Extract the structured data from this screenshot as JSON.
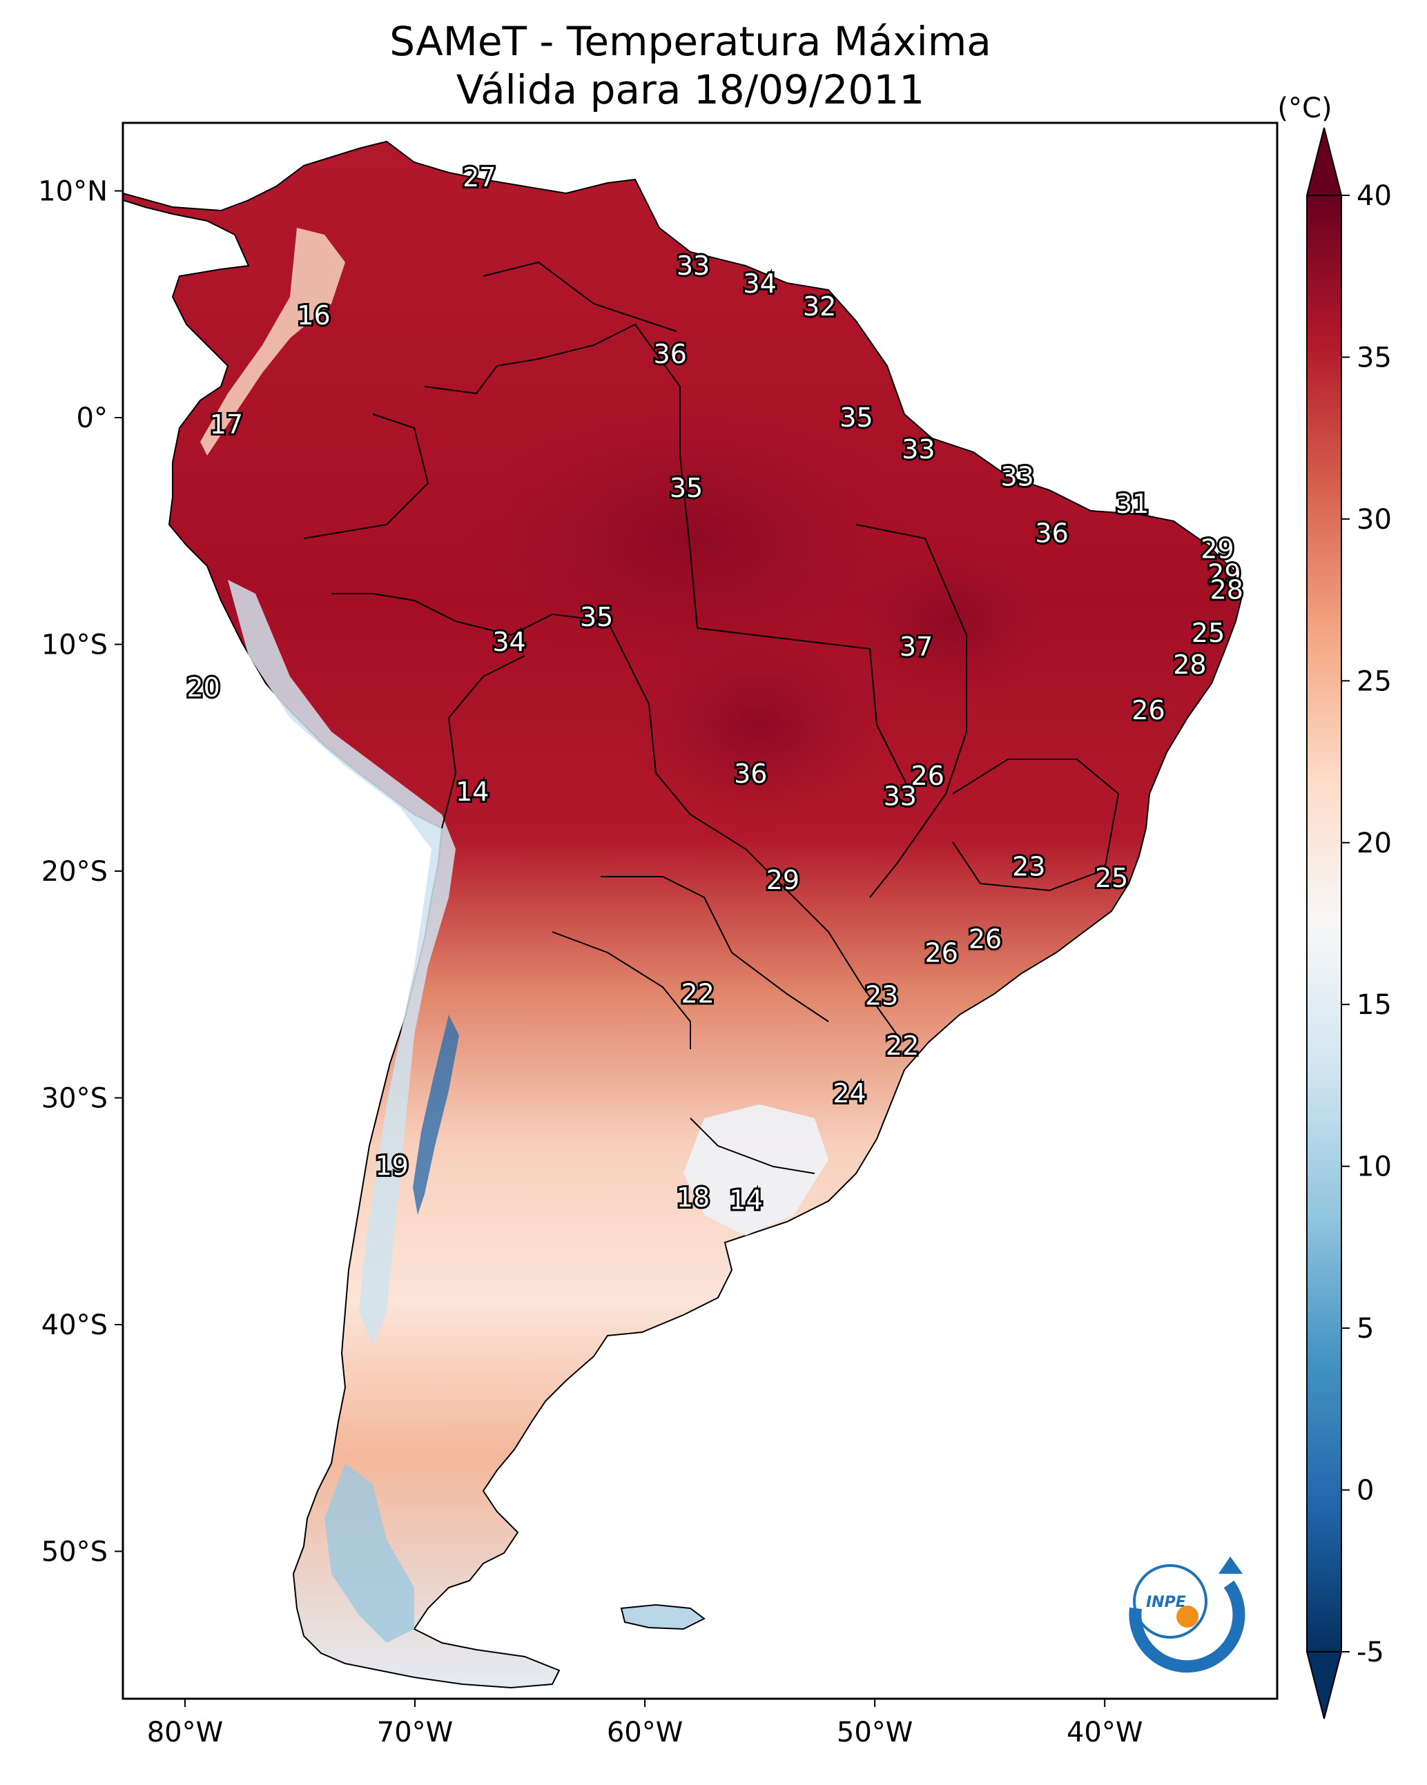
{
  "title": {
    "line1": "SAMeT - Temperatura Máxima",
    "line2": "Válida para 18/09/2011"
  },
  "map": {
    "lon_range": [
      -82.7,
      -32.5
    ],
    "lat_range": [
      -56.5,
      13.0
    ],
    "x_ticks": [
      {
        "lon": -80,
        "label": "80°W"
      },
      {
        "lon": -70,
        "label": "70°W"
      },
      {
        "lon": -60,
        "label": "60°W"
      },
      {
        "lon": -50,
        "label": "50°W"
      },
      {
        "lon": -40,
        "label": "40°W"
      }
    ],
    "y_ticks": [
      {
        "lat": 10,
        "label": "10°N"
      },
      {
        "lat": 0,
        "label": "0°"
      },
      {
        "lat": -10,
        "label": "10°S"
      },
      {
        "lat": -20,
        "label": "20°S"
      },
      {
        "lat": -30,
        "label": "30°S"
      },
      {
        "lat": -40,
        "label": "40°S"
      },
      {
        "lat": -50,
        "label": "50°S"
      }
    ],
    "contour_labels": [
      {
        "lon": -67.2,
        "lat": 10.6,
        "text": "27"
      },
      {
        "lon": -74.4,
        "lat": 4.5,
        "text": "16"
      },
      {
        "lon": -78.2,
        "lat": -0.3,
        "text": "17"
      },
      {
        "lon": -57.9,
        "lat": 6.7,
        "text": "33"
      },
      {
        "lon": -55.0,
        "lat": 5.9,
        "text": "34"
      },
      {
        "lon": -52.4,
        "lat": 4.9,
        "text": "32"
      },
      {
        "lon": -58.9,
        "lat": 2.8,
        "text": "36"
      },
      {
        "lon": -50.8,
        "lat": 0.0,
        "text": "35"
      },
      {
        "lon": -48.1,
        "lat": -1.4,
        "text": "33"
      },
      {
        "lon": -43.8,
        "lat": -2.6,
        "text": "33"
      },
      {
        "lon": -38.8,
        "lat": -3.8,
        "text": "31"
      },
      {
        "lon": -58.2,
        "lat": -3.1,
        "text": "35"
      },
      {
        "lon": -42.3,
        "lat": -5.1,
        "text": "36"
      },
      {
        "lon": -35.1,
        "lat": -5.8,
        "text": "29"
      },
      {
        "lon": -34.8,
        "lat": -6.9,
        "text": "29"
      },
      {
        "lon": -34.7,
        "lat": -7.6,
        "text": "28"
      },
      {
        "lon": -62.1,
        "lat": -8.8,
        "text": "35"
      },
      {
        "lon": -65.9,
        "lat": -9.9,
        "text": "34"
      },
      {
        "lon": -48.2,
        "lat": -10.1,
        "text": "37"
      },
      {
        "lon": -35.5,
        "lat": -9.5,
        "text": "25"
      },
      {
        "lon": -36.3,
        "lat": -10.9,
        "text": "28"
      },
      {
        "lon": -38.1,
        "lat": -12.9,
        "text": "26"
      },
      {
        "lon": -79.2,
        "lat": -11.9,
        "text": "20"
      },
      {
        "lon": -55.4,
        "lat": -15.7,
        "text": "36"
      },
      {
        "lon": -47.7,
        "lat": -15.8,
        "text": "26"
      },
      {
        "lon": -48.9,
        "lat": -16.7,
        "text": "33"
      },
      {
        "lon": -67.5,
        "lat": -16.5,
        "text": "14"
      },
      {
        "lon": -43.3,
        "lat": -19.8,
        "text": "23"
      },
      {
        "lon": -39.7,
        "lat": -20.3,
        "text": "25"
      },
      {
        "lon": -54.0,
        "lat": -20.4,
        "text": "29"
      },
      {
        "lon": -45.2,
        "lat": -23.0,
        "text": "26"
      },
      {
        "lon": -47.1,
        "lat": -23.6,
        "text": "26"
      },
      {
        "lon": -57.7,
        "lat": -25.4,
        "text": "22"
      },
      {
        "lon": -49.7,
        "lat": -25.5,
        "text": "23"
      },
      {
        "lon": -48.8,
        "lat": -27.7,
        "text": "22"
      },
      {
        "lon": -51.1,
        "lat": -29.8,
        "text": "24"
      },
      {
        "lon": -71.0,
        "lat": -33.0,
        "text": "19"
      },
      {
        "lon": -57.9,
        "lat": -34.4,
        "text": "18"
      },
      {
        "lon": -55.6,
        "lat": -34.5,
        "text": "14"
      }
    ]
  },
  "colorbar": {
    "unit_label": "(°C)",
    "min": -5,
    "max": 40,
    "ticks": [
      {
        "value": 40,
        "label": "40"
      },
      {
        "value": 35,
        "label": "35"
      },
      {
        "value": 30,
        "label": "30"
      },
      {
        "value": 25,
        "label": "25"
      },
      {
        "value": 20,
        "label": "20"
      },
      {
        "value": 15,
        "label": "15"
      },
      {
        "value": 10,
        "label": "10"
      },
      {
        "value": 5,
        "label": "5"
      },
      {
        "value": 0,
        "label": "0"
      },
      {
        "value": -5,
        "label": "-5"
      }
    ],
    "stops": [
      "#053061",
      "#2166ac",
      "#4393c3",
      "#92c5de",
      "#d1e5f0",
      "#f7f7f7",
      "#fddbc7",
      "#f4a582",
      "#d6604d",
      "#b2182b",
      "#67001f"
    ]
  },
  "logo": {
    "text": "INPE",
    "ring_color": "#1f72b8",
    "dot_color": "#f0901a"
  }
}
